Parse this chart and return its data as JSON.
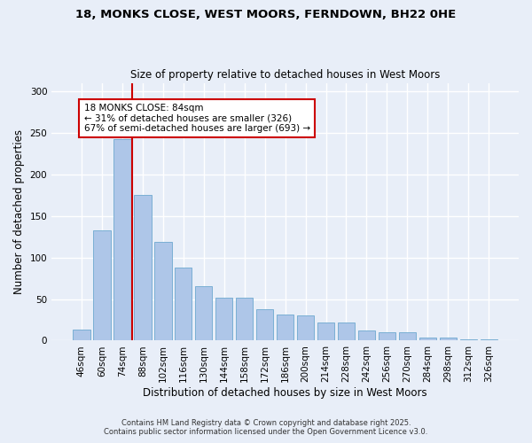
{
  "title_line1": "18, MONKS CLOSE, WEST MOORS, FERNDOWN, BH22 0HE",
  "title_line2": "Size of property relative to detached houses in West Moors",
  "xlabel": "Distribution of detached houses by size in West Moors",
  "ylabel": "Number of detached properties",
  "categories": [
    "46sqm",
    "60sqm",
    "74sqm",
    "88sqm",
    "102sqm",
    "116sqm",
    "130sqm",
    "144sqm",
    "158sqm",
    "172sqm",
    "186sqm",
    "200sqm",
    "214sqm",
    "228sqm",
    "242sqm",
    "256sqm",
    "270sqm",
    "284sqm",
    "298sqm",
    "312sqm",
    "326sqm"
  ],
  "values": [
    13,
    133,
    242,
    175,
    119,
    88,
    65,
    52,
    52,
    38,
    31,
    30,
    22,
    22,
    12,
    10,
    10,
    4,
    4,
    2,
    2
  ],
  "bar_color": "#aec6e8",
  "bar_edge_color": "#7aafd4",
  "vline_x": 2.5,
  "vline_color": "#cc0000",
  "annotation_text": "18 MONKS CLOSE: 84sqm\n← 31% of detached houses are smaller (326)\n67% of semi-detached houses are larger (693) →",
  "annotation_box_color": "#ffffff",
  "annotation_box_edge": "#cc0000",
  "ylim": [
    0,
    310
  ],
  "yticks": [
    0,
    50,
    100,
    150,
    200,
    250,
    300
  ],
  "background_color": "#e8eef8",
  "grid_color": "#ffffff",
  "footer_line1": "Contains HM Land Registry data © Crown copyright and database right 2025.",
  "footer_line2": "Contains public sector information licensed under the Open Government Licence v3.0."
}
